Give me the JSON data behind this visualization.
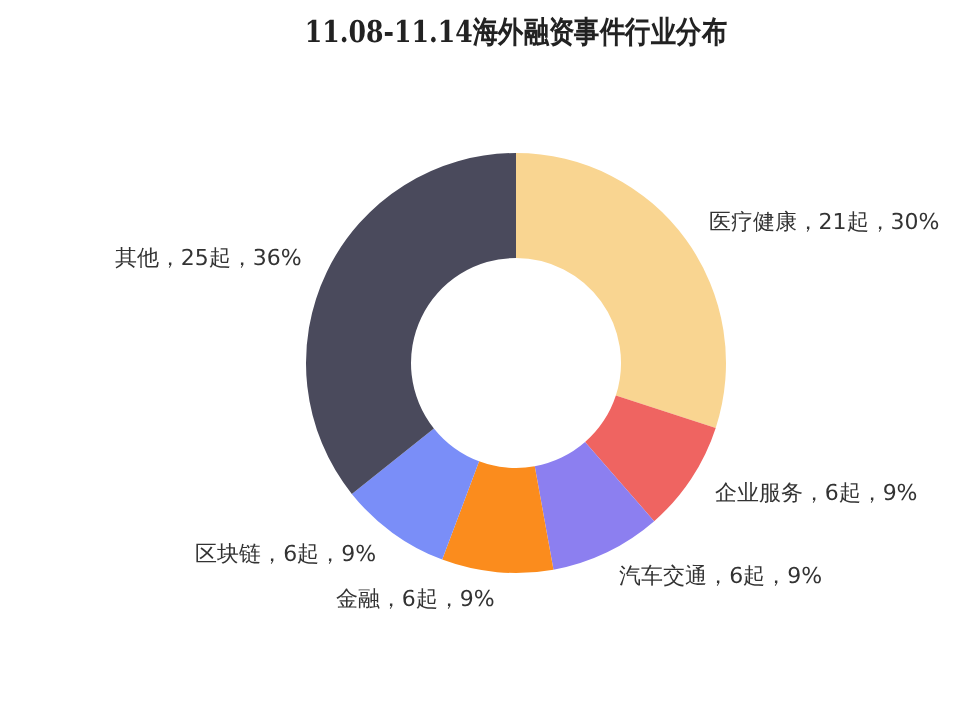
{
  "chart_data": {
    "type": "donut",
    "title": "11.08-11.14海外融资事件行业分布",
    "categories": [
      "医疗健康",
      "企业服务",
      "汽车交通",
      "金融",
      "区块链",
      "其他"
    ],
    "values": [
      21,
      6,
      6,
      6,
      6,
      25
    ],
    "colors": [
      "#f9d591",
      "#ef6461",
      "#8c7ff0",
      "#fb8c1d",
      "#7a8ef8",
      "#4a4a5c"
    ],
    "value_labels": [
      "，21起，30%",
      "，6起，9%",
      "，6起，9%",
      "，6起，9%",
      "，6起，9%",
      "，25起，36%"
    ],
    "legend": false
  }
}
